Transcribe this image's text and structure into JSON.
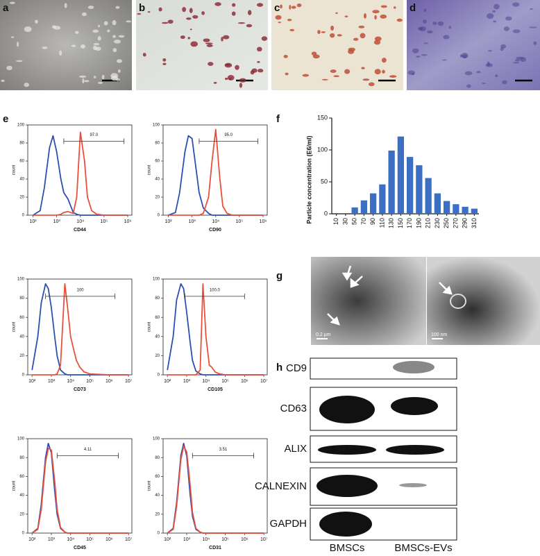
{
  "panel_labels": [
    "a",
    "b",
    "c",
    "d",
    "e",
    "f",
    "g",
    "h"
  ],
  "scale_labels": [
    "0.2 μm",
    "100 nm"
  ],
  "western_blot": {
    "rows": [
      "CD9",
      "CD63",
      "ALIX",
      "CALNEXIN",
      "GAPDH"
    ],
    "columns": [
      "BMSCs",
      "BMSCs-EVs"
    ]
  },
  "chart_data": [
    {
      "type": "line",
      "xscale": "log",
      "xlabel": "CD44",
      "ylabel": "count",
      "x": [
        100,
        200,
        300,
        500,
        700,
        1000,
        1500,
        2000,
        3000,
        5000,
        7000,
        10000,
        15000,
        20000,
        30000,
        50000,
        100000,
        1000000
      ],
      "series": [
        {
          "color": "#2b4fb0",
          "values": [
            0,
            5,
            30,
            75,
            88,
            70,
            40,
            25,
            18,
            3,
            1,
            0,
            0,
            0,
            0,
            0,
            0,
            0
          ]
        },
        {
          "color": "#e8503a",
          "values": [
            0,
            0,
            0,
            0,
            0,
            0,
            1,
            3,
            4,
            2,
            20,
            92,
            60,
            20,
            5,
            1,
            0,
            0
          ]
        }
      ],
      "gate": {
        "text": "97.0",
        "x": [
          2000,
          700000
        ],
        "y": 82
      },
      "xlim": [
        60,
        1500000
      ],
      "ylim": [
        0,
        100
      ],
      "xticks": [
        {
          "value": 100,
          "label": "10²"
        },
        {
          "value": 1000,
          "label": "10³"
        },
        {
          "value": 10000,
          "label": "10⁴"
        },
        {
          "value": 100000,
          "label": "10⁵"
        },
        {
          "value": 1000000,
          "label": "10⁶"
        }
      ],
      "yticks": [
        0,
        20,
        40,
        60,
        80,
        100
      ]
    },
    {
      "type": "line",
      "xscale": "log",
      "xlabel": "CD90",
      "ylabel": "count",
      "x": [
        100,
        200,
        300,
        500,
        700,
        1000,
        1500,
        2000,
        3000,
        5000,
        7000,
        10000,
        15000,
        20000,
        30000,
        50000,
        100000,
        1000000
      ],
      "series": [
        {
          "color": "#2b4fb0",
          "values": [
            0,
            3,
            25,
            70,
            88,
            85,
            50,
            25,
            8,
            2,
            0,
            0,
            0,
            0,
            0,
            0,
            0,
            0
          ]
        },
        {
          "color": "#e8503a",
          "values": [
            0,
            0,
            0,
            0,
            0,
            0,
            0,
            0,
            2,
            20,
            60,
            95,
            40,
            10,
            2,
            0,
            0,
            0
          ]
        }
      ],
      "gate": {
        "text": "95.0",
        "x": [
          2000,
          600000
        ],
        "y": 82
      },
      "xlim": [
        60,
        1500000
      ],
      "ylim": [
        0,
        100
      ],
      "xticks": [
        {
          "value": 100,
          "label": "10²"
        },
        {
          "value": 1000,
          "label": "10³"
        },
        {
          "value": 10000,
          "label": "10⁴"
        },
        {
          "value": 100000,
          "label": "10⁵"
        },
        {
          "value": 1000000,
          "label": "10⁶"
        }
      ],
      "yticks": [
        0,
        20,
        40,
        60,
        80,
        100
      ]
    },
    {
      "type": "line",
      "xscale": "log",
      "xlabel": "CD73",
      "ylabel": "count",
      "x": [
        100,
        200,
        300,
        500,
        700,
        1000,
        1500,
        2000,
        3000,
        5000,
        7000,
        10000,
        15000,
        20000,
        30000,
        50000,
        100000,
        1000000,
        10000000
      ],
      "series": [
        {
          "color": "#2b4fb0",
          "values": [
            5,
            40,
            75,
            95,
            90,
            70,
            40,
            20,
            5,
            1,
            0,
            0,
            0,
            0,
            0,
            0,
            0,
            0,
            0
          ]
        },
        {
          "color": "#e8503a",
          "values": [
            0,
            0,
            0,
            0,
            0,
            0,
            0,
            1,
            10,
            95,
            70,
            40,
            25,
            15,
            8,
            3,
            1,
            0,
            0
          ]
        }
      ],
      "gate": {
        "text": "100",
        "x": [
          500,
          2000000
        ],
        "y": 82
      },
      "xlim": [
        60,
        15000000
      ],
      "ylim": [
        0,
        100
      ],
      "xticks": [
        {
          "value": 100,
          "label": "10²"
        },
        {
          "value": 1000,
          "label": "10³"
        },
        {
          "value": 10000,
          "label": "10⁴"
        },
        {
          "value": 100000,
          "label": "10⁵"
        },
        {
          "value": 1000000,
          "label": "10⁶"
        },
        {
          "value": 10000000,
          "label": "10⁷"
        }
      ],
      "yticks": [
        0,
        20,
        40,
        60,
        80,
        100
      ]
    },
    {
      "type": "line",
      "xscale": "log",
      "xlabel": "CD105",
      "ylabel": "count",
      "x": [
        100,
        200,
        300,
        500,
        700,
        1000,
        1500,
        2000,
        3000,
        5000,
        7000,
        10000,
        15000,
        20000,
        30000,
        50000,
        100000,
        1000000,
        10000000
      ],
      "series": [
        {
          "color": "#2b4fb0",
          "values": [
            5,
            40,
            78,
            95,
            90,
            65,
            35,
            15,
            4,
            1,
            0,
            0,
            0,
            0,
            0,
            0,
            0,
            0,
            0
          ]
        },
        {
          "color": "#e8503a",
          "values": [
            0,
            0,
            0,
            0,
            0,
            0,
            0,
            0,
            0,
            5,
            95,
            40,
            10,
            8,
            3,
            1,
            0,
            0,
            0
          ]
        }
      ],
      "gate": {
        "text": "100.0",
        "x": [
          800,
          1000000
        ],
        "y": 82
      },
      "xlim": [
        60,
        15000000
      ],
      "ylim": [
        0,
        100
      ],
      "xticks": [
        {
          "value": 100,
          "label": "10²"
        },
        {
          "value": 1000,
          "label": "10³"
        },
        {
          "value": 10000,
          "label": "10⁴"
        },
        {
          "value": 100000,
          "label": "10⁵"
        },
        {
          "value": 1000000,
          "label": "10⁶"
        },
        {
          "value": 10000000,
          "label": "10⁷"
        }
      ],
      "yticks": [
        0,
        20,
        40,
        60,
        80,
        100
      ]
    },
    {
      "type": "line",
      "xscale": "log",
      "xlabel": "CD45",
      "ylabel": "count",
      "x": [
        100,
        200,
        300,
        500,
        700,
        1000,
        1500,
        2000,
        3000,
        5000,
        7000,
        10000,
        15000,
        20000,
        30000,
        50000,
        100000,
        1000000,
        10000000
      ],
      "series": [
        {
          "color": "#2b4fb0",
          "values": [
            0,
            5,
            30,
            80,
            95,
            85,
            45,
            20,
            5,
            1,
            0,
            0,
            0,
            0,
            0,
            0,
            0,
            0,
            0
          ]
        },
        {
          "color": "#e8503a",
          "values": [
            0,
            4,
            25,
            75,
            90,
            88,
            55,
            25,
            6,
            1,
            0,
            0,
            0,
            0,
            0,
            0,
            0,
            0,
            0
          ]
        }
      ],
      "gate": {
        "text": "4.11",
        "x": [
          2000,
          3000000
        ],
        "y": 82
      },
      "xlim": [
        60,
        15000000
      ],
      "ylim": [
        0,
        100
      ],
      "xticks": [
        {
          "value": 100,
          "label": "10²"
        },
        {
          "value": 1000,
          "label": "10³"
        },
        {
          "value": 10000,
          "label": "10⁴"
        },
        {
          "value": 100000,
          "label": "10⁵"
        },
        {
          "value": 1000000,
          "label": "10⁶"
        },
        {
          "value": 10000000,
          "label": "10⁷"
        }
      ],
      "yticks": [
        0,
        20,
        40,
        60,
        80,
        100
      ]
    },
    {
      "type": "line",
      "xscale": "log",
      "xlabel": "CD31",
      "ylabel": "count",
      "x": [
        100,
        200,
        300,
        500,
        700,
        1000,
        1500,
        2000,
        3000,
        5000,
        7000,
        10000,
        15000,
        20000,
        30000,
        50000,
        100000,
        1000000,
        10000000
      ],
      "series": [
        {
          "color": "#2b4fb0",
          "values": [
            0,
            5,
            32,
            82,
            95,
            82,
            42,
            18,
            4,
            1,
            0,
            0,
            0,
            0,
            0,
            0,
            0,
            0,
            0
          ]
        },
        {
          "color": "#e8503a",
          "values": [
            0,
            4,
            28,
            78,
            92,
            86,
            52,
            22,
            5,
            1,
            0,
            0,
            0,
            0,
            0,
            0,
            0,
            0,
            0
          ]
        }
      ],
      "gate": {
        "text": "3.51",
        "x": [
          2000,
          3000000
        ],
        "y": 82
      },
      "xlim": [
        60,
        15000000
      ],
      "ylim": [
        0,
        100
      ],
      "xticks": [
        {
          "value": 100,
          "label": "10²"
        },
        {
          "value": 1000,
          "label": "10³"
        },
        {
          "value": 10000,
          "label": "10⁴"
        },
        {
          "value": 100000,
          "label": "10⁵"
        },
        {
          "value": 1000000,
          "label": "10⁶"
        },
        {
          "value": 10000000,
          "label": "10⁷"
        }
      ],
      "yticks": [
        0,
        20,
        40,
        60,
        80,
        100
      ]
    },
    {
      "type": "bar",
      "ylabel": "Particle concentration (E6/ml)",
      "color": "#3a6fc4",
      "categories": [
        "10",
        "30",
        "50",
        "70",
        "90",
        "110",
        "130",
        "150",
        "170",
        "190",
        "210",
        "230",
        "250",
        "270",
        "290",
        "310"
      ],
      "values": [
        0,
        0,
        10,
        21,
        32,
        46,
        99,
        121,
        89,
        76,
        56,
        32,
        20,
        15,
        11,
        8
      ],
      "ylim": [
        0,
        150
      ],
      "yticks": [
        0,
        50,
        100,
        150
      ]
    }
  ]
}
